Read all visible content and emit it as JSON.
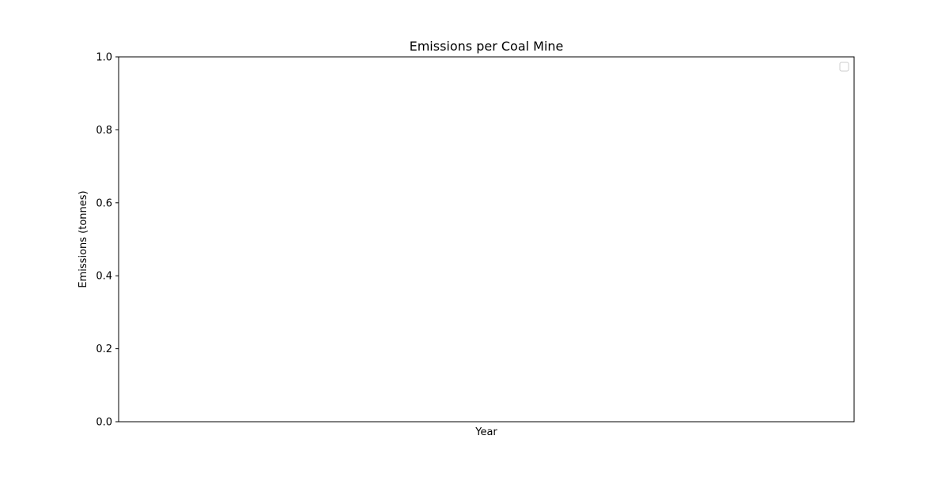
{
  "chart_data": {
    "type": "line",
    "title": "Emissions per Coal Mine",
    "xlabel": "Year",
    "ylabel": "Emissions (tonnes)",
    "ylim": [
      0,
      1
    ],
    "y_ticks": [
      "0.0",
      "0.2",
      "0.4",
      "0.6",
      "0.8",
      "1.0"
    ],
    "x_ticks": [],
    "series": [],
    "grid": false,
    "legend": {
      "placement": "top-right",
      "entries": []
    }
  },
  "colors": {
    "axis": "#000000",
    "legend_border": "#cccccc",
    "background": "#ffffff"
  }
}
